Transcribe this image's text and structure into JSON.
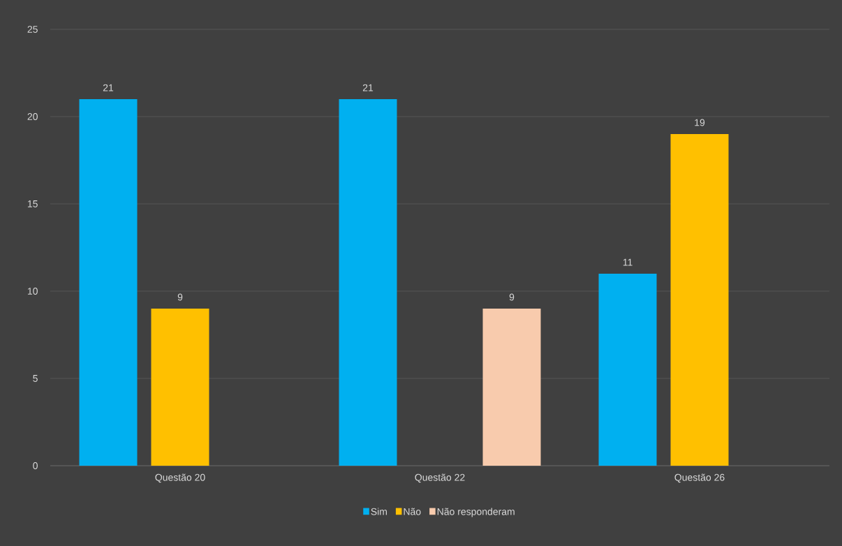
{
  "chart_data": {
    "type": "bar",
    "categories": [
      "Questão 20",
      "Questão 22",
      "Questão 26"
    ],
    "series": [
      {
        "name": "Sim",
        "color": "#00b0f0",
        "values": [
          21,
          21,
          11
        ]
      },
      {
        "name": "Não",
        "color": "#ffc000",
        "values": [
          9,
          null,
          19
        ]
      },
      {
        "name": "Não responderam",
        "color": "#f8cbad",
        "values": [
          null,
          9,
          null
        ]
      }
    ],
    "ylim": [
      0,
      25
    ],
    "yticks": [
      0,
      5,
      10,
      15,
      20,
      25
    ],
    "grid": "y",
    "legend": "bottom",
    "data_labels": true
  }
}
